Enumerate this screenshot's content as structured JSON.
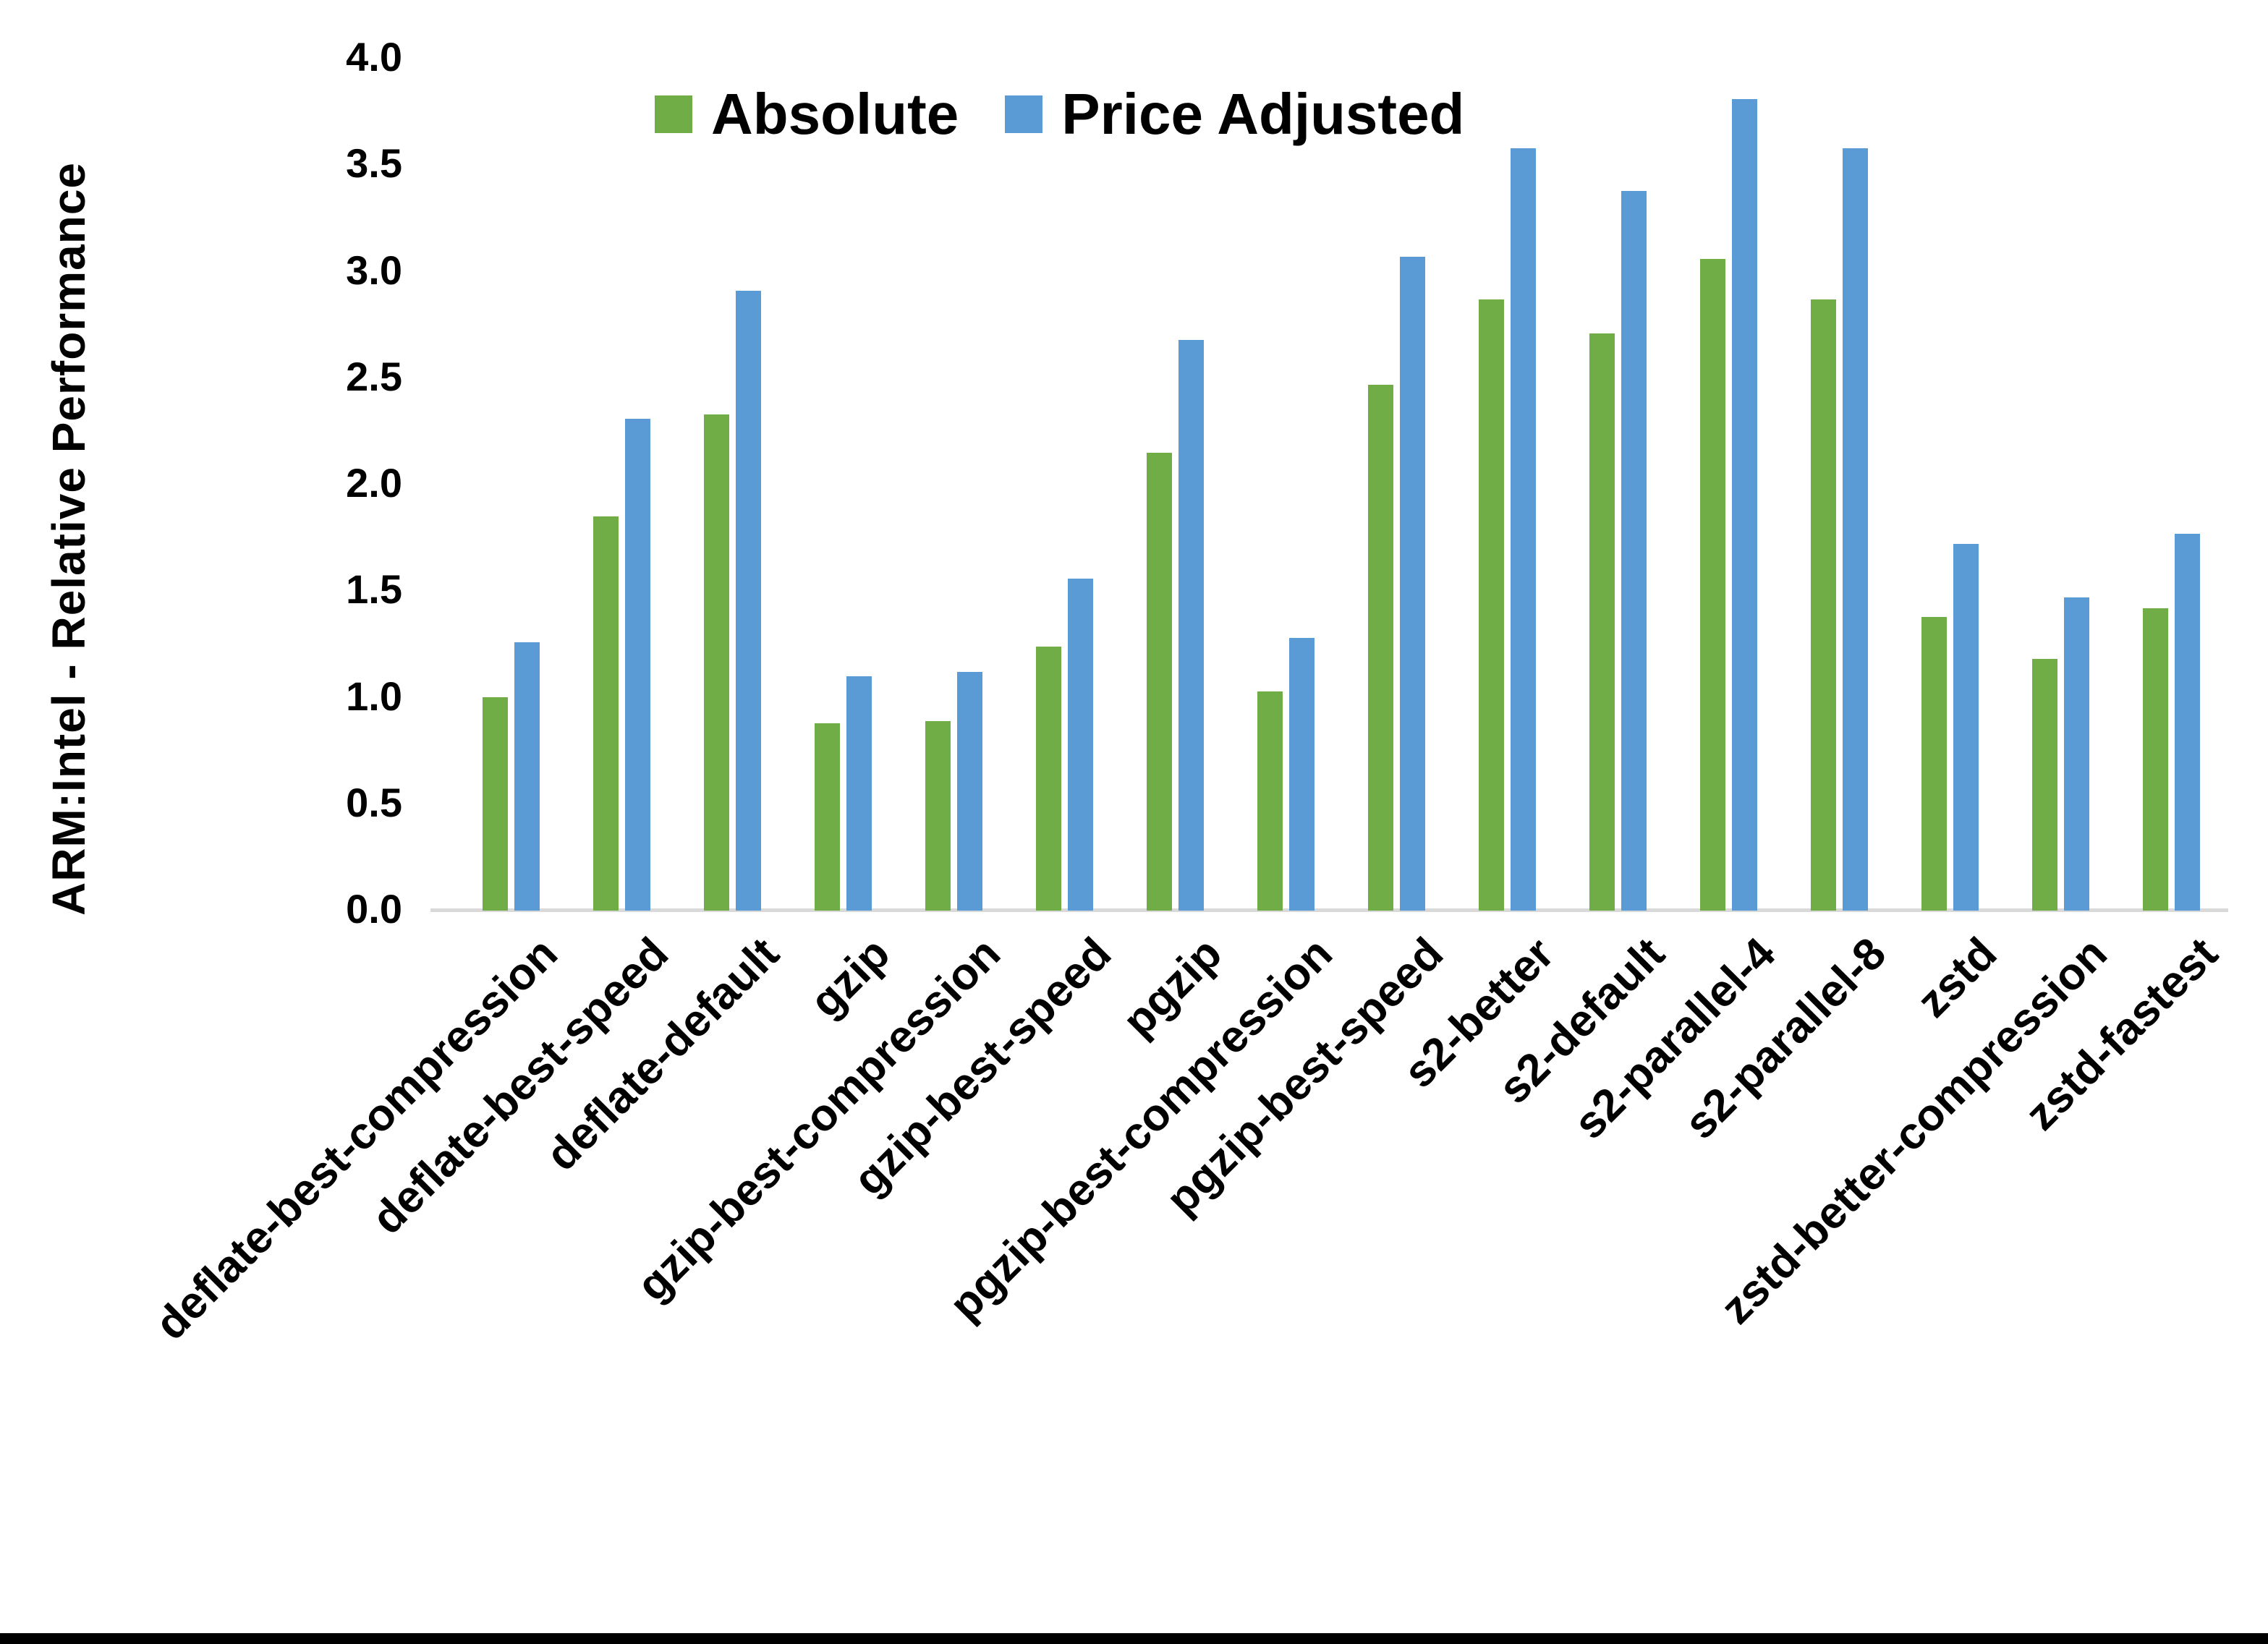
{
  "chart_data": {
    "type": "bar",
    "title": "",
    "xlabel": "",
    "ylabel": "ARM:Intel - Relative Performance",
    "ylim": [
      0,
      4
    ],
    "ytick_step": 0.5,
    "ytick_labels": [
      "0.0",
      "0.5",
      "1.0",
      "1.5",
      "2.0",
      "2.5",
      "3.0",
      "3.5",
      "4.0"
    ],
    "grid": false,
    "legend_position": "top-center",
    "categories": [
      "deflate-best-compression",
      "deflate-best-speed",
      "deflate-default",
      "gzip",
      "gzip-best-compression",
      "gzip-best-speed",
      "pgzip",
      "pgzip-best-compression",
      "pgzip-best-speed",
      "s2-better",
      "s2-default",
      "s2-parallel-4",
      "s2-parallel-8",
      "zstd",
      "zstd-better-compression",
      "zstd-fastest"
    ],
    "series": [
      {
        "name": "Absolute",
        "color": "#70AD47",
        "values": [
          1.0,
          1.85,
          2.33,
          0.88,
          0.89,
          1.24,
          2.15,
          1.03,
          2.47,
          2.87,
          2.71,
          3.06,
          2.87,
          1.38,
          1.18,
          1.42
        ]
      },
      {
        "name": "Price Adjusted",
        "color": "#5B9BD5",
        "values": [
          1.26,
          2.31,
          2.91,
          1.1,
          1.12,
          1.56,
          2.68,
          1.28,
          3.07,
          3.58,
          3.38,
          3.81,
          3.58,
          1.72,
          1.47,
          1.77
        ]
      }
    ]
  },
  "colors": {
    "absolute": "#70AD47",
    "price_adjusted": "#5B9BD5",
    "axis_line": "#D9D9D9",
    "text": "#000000",
    "bottom_edge_bar": "#000000"
  }
}
